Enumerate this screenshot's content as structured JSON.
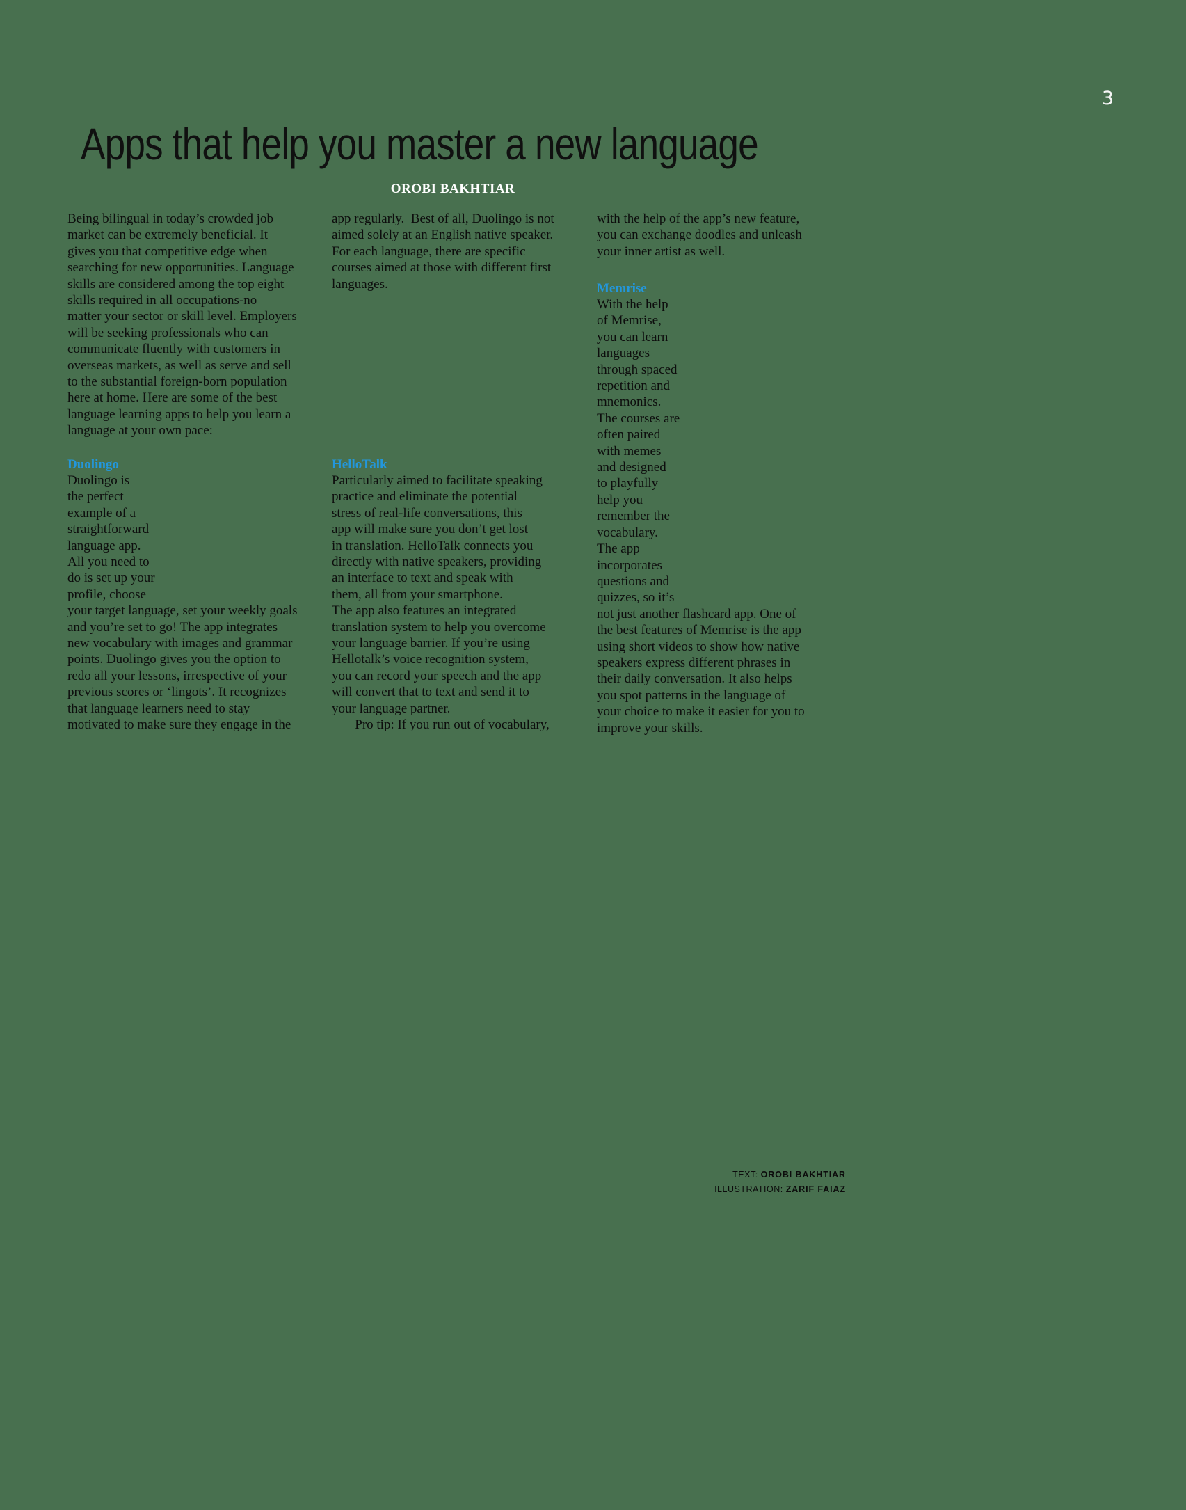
{
  "page": {
    "number": "3",
    "background_color": "#48704f",
    "accent_color": "#2397dc"
  },
  "header": {
    "title": "Apps that help you master a new language",
    "byline": "OROBI BAKHTIAR"
  },
  "article": {
    "intro_lines": [
      "Being bilingual in today’s crowded job",
      "market can be extremely beneficial. It",
      "gives you that competitive edge when",
      "searching for new opportunities. Language",
      "skills are considered among the top eight",
      "skills required in all occupations-no",
      "matter your sector or skill level. Employers",
      "will be seeking professionals who can",
      "communicate fluently with customers in",
      "overseas markets, as well as serve and sell",
      "to the substantial foreign-born population",
      "here at home. Here are some of the best",
      "language learning apps to help you learn a",
      "language at your own pace:"
    ],
    "duolingo": {
      "heading": "Duolingo",
      "lines": [
        "Duolingo is",
        "the perfect",
        "example of a",
        "straightforward",
        "language app.",
        "All you need to",
        "do is set up your",
        "profile, choose",
        "your target language, set your weekly goals",
        "and you’re set to go! The app integrates",
        "new vocabulary with images and grammar",
        "points. Duolingo gives you the option to",
        "redo all your lessons, irrespective of your",
        "previous scores or ‘lingots’. It recognizes",
        "that language learners need to stay",
        "motivated to make sure they engage in the"
      ],
      "continuation_lines": [
        "app regularly.  Best of all, Duolingo is not",
        "aimed solely at an English native speaker.",
        "For each language, there are specific",
        "courses aimed at those with different first",
        "languages."
      ]
    },
    "hellotalk": {
      "heading": "HelloTalk",
      "lines": [
        "Particularly aimed to facilitate speaking",
        "practice and eliminate the potential",
        "stress of real-life conversations, this",
        "app will make sure you don’t get lost",
        "in translation. HelloTalk connects you",
        "directly with native speakers, providing",
        "an interface to text and speak with",
        "them, all from your smartphone.",
        "The app also features an integrated",
        "translation system to help you overcome",
        "your language barrier. If you’re using",
        "Hellotalk’s voice recognition system,",
        "you can record your speech and the app",
        "will convert that to text and send it to",
        "your language partner.",
        "       Pro tip: If you run out of vocabulary,"
      ],
      "continuation_lines": [
        "with the help of the app’s new feature,",
        "you can exchange doodles and unleash",
        "your inner artist as well."
      ]
    },
    "memrise": {
      "heading": "Memrise",
      "lines": [
        "With the help",
        "of Memrise,",
        "you can learn",
        "languages",
        "through spaced",
        "repetition and",
        "mnemonics.",
        "The courses are",
        "often paired",
        "with memes",
        "and designed",
        "to playfully",
        "help you",
        "remember the",
        "vocabulary.",
        "The app",
        "incorporates",
        "questions and",
        "quizzes, so it’s",
        "not just another flashcard app. One of",
        "the best features of Memrise is the app",
        "using short videos to show how native",
        "speakers express different phrases in",
        "their daily conversation. It also helps",
        "you spot patterns in the language of",
        "your choice to make it easier for you to",
        "improve your skills."
      ]
    }
  },
  "credits": {
    "text_label": "TEXT:",
    "text_name": "OROBI BAKHTIAR",
    "illustration_label": "ILLUSTRATION:",
    "illustration_name": "ZARIF FAIAZ"
  }
}
